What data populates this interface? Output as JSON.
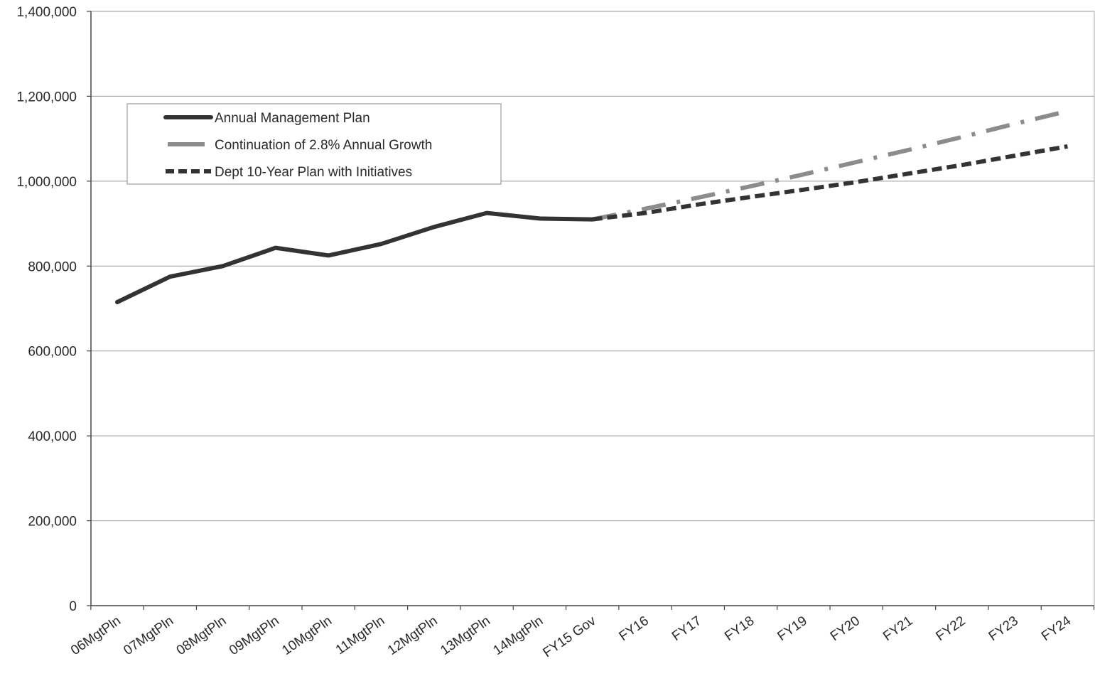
{
  "chart_data": {
    "type": "line",
    "title": "",
    "xlabel": "",
    "ylabel": "",
    "categories": [
      "06MgtPln",
      "07MgtPln",
      "08MgtPln",
      "09MgtPln",
      "10MgtPln",
      "11MgtPln",
      "12MgtPln",
      "13MgtPln",
      "14MgtPln",
      "FY15 Gov",
      "FY16",
      "FY17",
      "FY18",
      "FY19",
      "FY20",
      "FY21",
      "FY22",
      "FY23",
      "FY24"
    ],
    "yticks": [
      "0",
      "200,000",
      "400,000",
      "600,000",
      "800,000",
      "1,000,000",
      "1,200,000",
      "1,400,000"
    ],
    "ylim": [
      0,
      1400000
    ],
    "grid": true,
    "legend_position": "top-left",
    "series": [
      {
        "name": "Annual Management Plan",
        "color": "#333333",
        "style": "solid",
        "values": [
          715000,
          775000,
          800000,
          843000,
          825000,
          852000,
          892000,
          925000,
          912000,
          910000,
          null,
          null,
          null,
          null,
          null,
          null,
          null,
          null,
          null
        ]
      },
      {
        "name": "Continuation of 2.8% Annual Growth",
        "color": "#8c8c8c",
        "style": "dash-dot",
        "values": [
          null,
          null,
          null,
          null,
          null,
          null,
          null,
          null,
          null,
          910000,
          935000,
          961000,
          988000,
          1016000,
          1045000,
          1074000,
          1104000,
          1135000,
          1165000
        ]
      },
      {
        "name": "Dept 10-Year Plan with Initiatives",
        "color": "#333333",
        "style": "dashed",
        "values": [
          null,
          null,
          null,
          null,
          null,
          null,
          null,
          null,
          null,
          910000,
          925000,
          945000,
          963000,
          980000,
          998000,
          1018000,
          1038000,
          1060000,
          1082000
        ]
      }
    ]
  }
}
